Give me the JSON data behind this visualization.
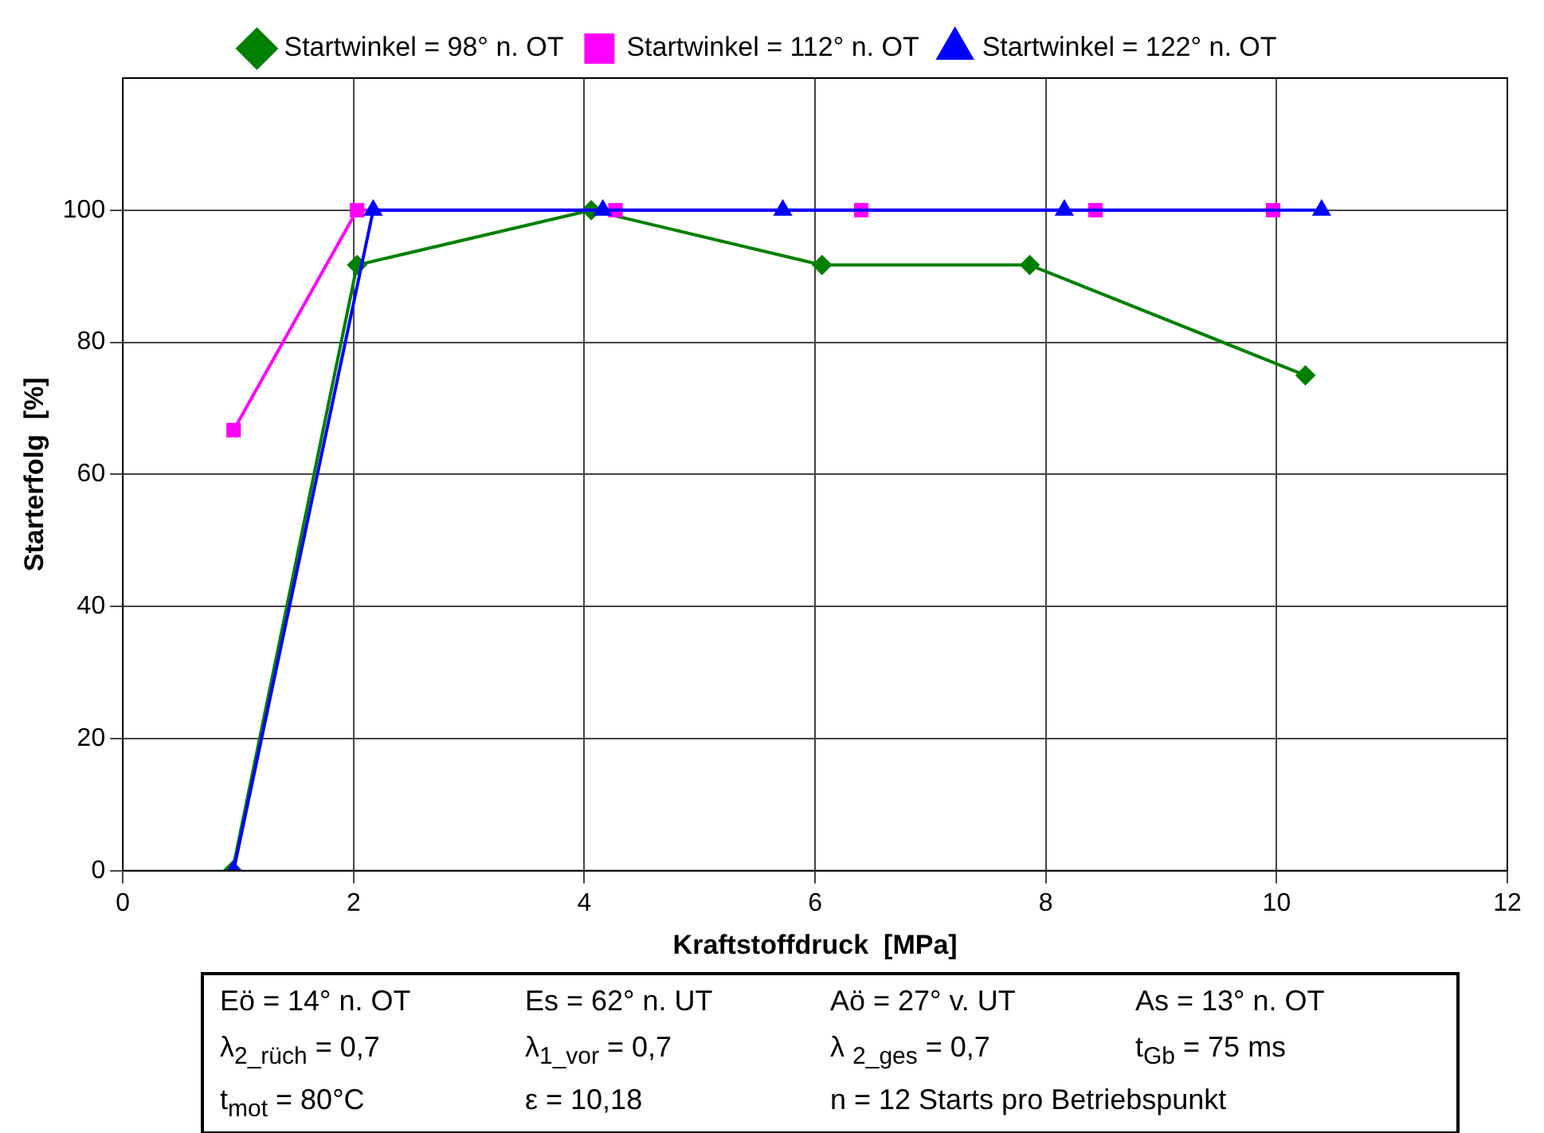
{
  "chart_data": {
    "type": "line",
    "xlabel": "Kraftstoffdruck  [MPa]",
    "ylabel": "Starterfolg  [%]",
    "xlim": [
      0,
      12
    ],
    "xticks": [
      0,
      2,
      4,
      6,
      8,
      10,
      12
    ],
    "ylim": [
      0,
      120
    ],
    "yticks": [
      0,
      20,
      40,
      60,
      80,
      100
    ],
    "grid": true,
    "legend": "top",
    "line_style": "solid",
    "series": [
      {
        "name": "Startwinkel = 98° n. OT",
        "color": "#008000",
        "marker": "diamond",
        "x": [
          0.95,
          2.03,
          4.06,
          6.06,
          7.86,
          10.25
        ],
        "values": [
          0,
          91.7,
          100,
          91.7,
          91.7,
          75
        ]
      },
      {
        "name": "Startwinkel = 112° n. OT",
        "color": "#ff00ff",
        "marker": "square",
        "x": [
          0.96,
          2.03,
          4.27,
          6.4,
          8.43,
          9.97
        ],
        "values": [
          66.7,
          100,
          100,
          100,
          100,
          100
        ]
      },
      {
        "name": "Startwinkel = 122° n. OT",
        "color": "#0000ff",
        "marker": "triangle",
        "x": [
          0.96,
          2.17,
          4.16,
          5.72,
          8.16,
          10.39
        ],
        "values": [
          0,
          100,
          100,
          100,
          100,
          100
        ]
      }
    ],
    "annotations": [
      "Eö = 14° n. OT",
      "Es = 62° n. UT",
      "Aö = 27° v. UT",
      "As = 13° n. OT",
      "λ$_{2_rüch}$ = 0,7",
      "λ$_{1_vor}$ = 0,7",
      "λ $_{2_ges}$ = 0,7",
      "t$_{Gb}$ = 75 ms",
      "t$_{mot}$ = 80°C",
      "ε = 10,18",
      "n = 12 Starts pro Betriebspunkt"
    ]
  }
}
